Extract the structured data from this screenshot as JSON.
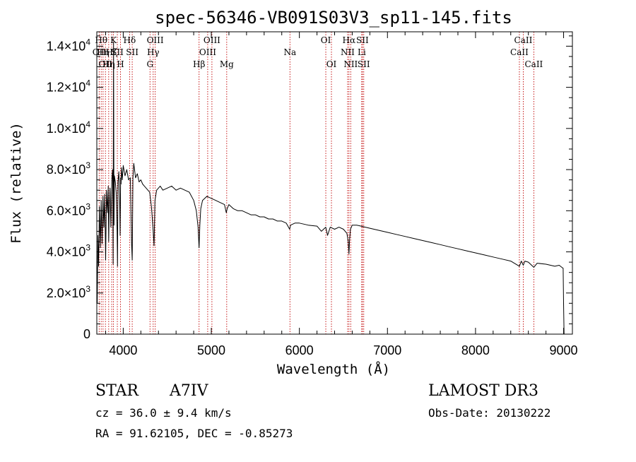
{
  "title": "spec-56346-VB091S03V3_sp11-145.fits",
  "chart_data": {
    "type": "line",
    "title": "spec-56346-VB091S03V3_sp11-145.fits",
    "xlabel": "Wavelength (Å)",
    "ylabel": "Flux (relative)",
    "xlim": [
      3700,
      9100
    ],
    "ylim": [
      0,
      14700
    ],
    "xticks": [
      {
        "value": 4000,
        "label": "4000"
      },
      {
        "value": 5000,
        "label": "5000"
      },
      {
        "value": 6000,
        "label": "6000"
      },
      {
        "value": 7000,
        "label": "7000"
      },
      {
        "value": 8000,
        "label": "8000"
      },
      {
        "value": 9000,
        "label": "9000"
      }
    ],
    "yticks": [
      {
        "value": 0,
        "mant": "0",
        "exp": ""
      },
      {
        "value": 2000,
        "mant": "2.0×10",
        "exp": "3"
      },
      {
        "value": 4000,
        "mant": "4.0×10",
        "exp": "3"
      },
      {
        "value": 6000,
        "mant": "6.0×10",
        "exp": "3"
      },
      {
        "value": 8000,
        "mant": "8.0×10",
        "exp": "3"
      },
      {
        "value": 10000,
        "mant": "1.0×10",
        "exp": "4"
      },
      {
        "value": 12000,
        "mant": "1.2×10",
        "exp": "4"
      },
      {
        "value": 14000,
        "mant": "1.4×10",
        "exp": "4"
      }
    ],
    "series": [
      {
        "name": "spectrum",
        "x": [
          3700,
          3705,
          3712,
          3720,
          3730,
          3740,
          3750,
          3760,
          3770,
          3780,
          3790,
          3800,
          3810,
          3820,
          3830,
          3835,
          3840,
          3850,
          3860,
          3870,
          3880,
          3885,
          3890,
          3895,
          3900,
          3910,
          3920,
          3930,
          3935,
          3940,
          3950,
          3960,
          3965,
          3970,
          3975,
          3980,
          3990,
          4000,
          4020,
          4040,
          4060,
          4080,
          4095,
          4102,
          4110,
          4120,
          4140,
          4160,
          4180,
          4200,
          4220,
          4240,
          4260,
          4280,
          4300,
          4320,
          4340,
          4350,
          4360,
          4380,
          4400,
          4420,
          4450,
          4500,
          4550,
          4600,
          4650,
          4700,
          4750,
          4800,
          4830,
          4850,
          4861,
          4870,
          4880,
          4900,
          4950,
          5000,
          5050,
          5100,
          5150,
          5170,
          5180,
          5200,
          5250,
          5300,
          5350,
          5400,
          5450,
          5500,
          5550,
          5600,
          5650,
          5700,
          5750,
          5800,
          5850,
          5890,
          5900,
          5950,
          6000,
          6100,
          6200,
          6250,
          6300,
          6320,
          6350,
          6400,
          6450,
          6500,
          6540,
          6555,
          6563,
          6570,
          6580,
          6600,
          6650,
          6700,
          6800,
          6900,
          7000,
          7100,
          7200,
          7300,
          7400,
          7500,
          7600,
          7700,
          7800,
          7900,
          8000,
          8100,
          8200,
          8300,
          8400,
          8498,
          8520,
          8542,
          8560,
          8600,
          8662,
          8700,
          8800,
          8900,
          8950,
          8980,
          8995,
          9000,
          9005
        ],
        "y": [
          3500,
          1500,
          4800,
          3300,
          6200,
          4200,
          6500,
          4400,
          6700,
          5200,
          6800,
          3600,
          7000,
          5900,
          7200,
          4500,
          5800,
          7100,
          5200,
          7500,
          8000,
          3400,
          14200,
          5300,
          7700,
          7400,
          6900,
          5000,
          3300,
          7400,
          7900,
          6400,
          4800,
          7600,
          7300,
          8100,
          7500,
          8200,
          7700,
          8000,
          7500,
          7600,
          4400,
          3600,
          7600,
          8300,
          7600,
          7800,
          7400,
          7500,
          7300,
          7200,
          7100,
          7000,
          6900,
          6200,
          5000,
          4300,
          6500,
          7000,
          7100,
          7200,
          7000,
          7100,
          7200,
          7000,
          7100,
          7000,
          6900,
          6500,
          6000,
          5200,
          4200,
          5300,
          6100,
          6500,
          6700,
          6600,
          6500,
          6400,
          6300,
          5900,
          6100,
          6300,
          6100,
          6000,
          6000,
          5900,
          5800,
          5800,
          5700,
          5700,
          5600,
          5600,
          5500,
          5500,
          5400,
          5100,
          5300,
          5400,
          5400,
          5300,
          5250,
          5000,
          5200,
          4800,
          5200,
          5100,
          5200,
          5100,
          4900,
          4500,
          3900,
          4600,
          5100,
          5300,
          5300,
          5250,
          5150,
          5050,
          4950,
          4850,
          4750,
          4650,
          4550,
          4450,
          4350,
          4250,
          4150,
          4050,
          3950,
          3850,
          3750,
          3650,
          3550,
          3300,
          3550,
          3350,
          3550,
          3500,
          3250,
          3450,
          3400,
          3300,
          3350,
          3250,
          3200,
          1500,
          0
        ]
      }
    ],
    "lines": [
      {
        "wave": 3727,
        "label": "OII",
        "row": 1
      },
      {
        "wave": 3750,
        "label": "Hθ",
        "row": 0
      },
      {
        "wave": 3771,
        "label": "Hη",
        "row": 1
      },
      {
        "wave": 3798,
        "label": "OII",
        "row": 2
      },
      {
        "wave": 3835,
        "label": "Hη",
        "row": 2
      },
      {
        "wave": 3869,
        "label": "Hζ",
        "row": 1
      },
      {
        "wave": 3889,
        "label": "K",
        "row": 0
      },
      {
        "wave": 3933,
        "label": "SII",
        "row": 1
      },
      {
        "wave": 3969,
        "label": "H",
        "row": 2
      },
      {
        "wave": 4072,
        "label": "Hδ",
        "row": 0
      },
      {
        "wave": 4102,
        "label": "SII",
        "row": 1
      },
      {
        "wave": 4304,
        "label": "G",
        "row": 2
      },
      {
        "wave": 4340,
        "label": "Hγ",
        "row": 1
      },
      {
        "wave": 4363,
        "label": "OIII",
        "row": 0
      },
      {
        "wave": 4861,
        "label": "Hβ",
        "row": 2
      },
      {
        "wave": 4959,
        "label": "OIII",
        "row": 1
      },
      {
        "wave": 5007,
        "label": "OIII",
        "row": 0
      },
      {
        "wave": 5175,
        "label": "Mg",
        "row": 2
      },
      {
        "wave": 5893,
        "label": "Na",
        "row": 1
      },
      {
        "wave": 6300,
        "label": "OI",
        "row": 0
      },
      {
        "wave": 6364,
        "label": "OI",
        "row": 2
      },
      {
        "wave": 6548,
        "label": "NII",
        "row": 1
      },
      {
        "wave": 6563,
        "label": "Hα",
        "row": 0
      },
      {
        "wave": 6583,
        "label": "NII",
        "row": 2
      },
      {
        "wave": 6708,
        "label": "Li",
        "row": 1
      },
      {
        "wave": 6716,
        "label": "SII",
        "row": 0
      },
      {
        "wave": 6731,
        "label": "SII",
        "row": 2
      },
      {
        "wave": 8498,
        "label": "CaII",
        "row": 1
      },
      {
        "wave": 8542,
        "label": "CaII",
        "row": 0
      },
      {
        "wave": 8662,
        "label": "CaII",
        "row": 2
      }
    ]
  },
  "footer": {
    "object_class": "STAR",
    "subclass": "A7IV",
    "survey": "LAMOST DR3",
    "redshift_line": "cz = 36.0 ± 9.4 km/s",
    "obs_date": "Obs-Date: 20130222",
    "coords_line": "RA =  91.62105, DEC =  -0.85273"
  }
}
